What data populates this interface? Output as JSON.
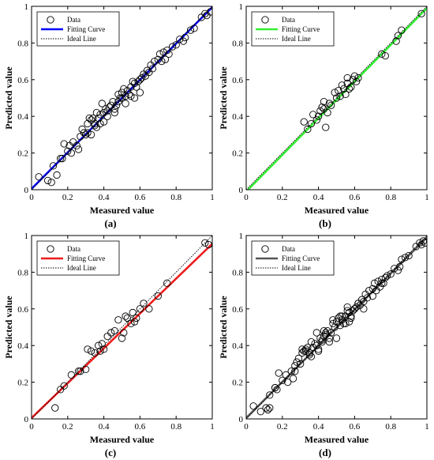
{
  "colors": {
    "panel_a": "#0000ff",
    "panel_b": "#33ee33",
    "panel_c": "#ee1c1c",
    "panel_d": "#555555",
    "ideal": "#000000",
    "marker": "#000000"
  },
  "chart_data": [
    {
      "type": "scatter",
      "caption": "(a)",
      "xlabel": "Measured value",
      "ylabel": "Predicted value",
      "xlim": [
        0,
        1
      ],
      "ylim": [
        0,
        1
      ],
      "xticks": [
        "0",
        "0.2",
        "0.4",
        "0.6",
        "0.8",
        "1"
      ],
      "yticks": [
        "0",
        "0.2",
        "0.4",
        "0.6",
        "0.8",
        "1"
      ],
      "grid": false,
      "legend": {
        "position": "top-left",
        "entries": [
          "Data",
          "Fitting Curve",
          "Ideal Line"
        ]
      },
      "series": [
        {
          "name": "Data",
          "marker": "circle",
          "x": [
            0.04,
            0.09,
            0.11,
            0.12,
            0.14,
            0.16,
            0.17,
            0.18,
            0.2,
            0.21,
            0.22,
            0.23,
            0.25,
            0.26,
            0.27,
            0.28,
            0.29,
            0.3,
            0.31,
            0.31,
            0.32,
            0.33,
            0.33,
            0.34,
            0.35,
            0.35,
            0.36,
            0.36,
            0.37,
            0.38,
            0.38,
            0.39,
            0.4,
            0.4,
            0.41,
            0.42,
            0.42,
            0.43,
            0.44,
            0.45,
            0.46,
            0.46,
            0.47,
            0.48,
            0.48,
            0.49,
            0.5,
            0.5,
            0.51,
            0.52,
            0.52,
            0.53,
            0.54,
            0.55,
            0.55,
            0.56,
            0.57,
            0.57,
            0.58,
            0.59,
            0.6,
            0.6,
            0.61,
            0.62,
            0.63,
            0.64,
            0.65,
            0.66,
            0.67,
            0.68,
            0.7,
            0.71,
            0.72,
            0.73,
            0.74,
            0.75,
            0.76,
            0.78,
            0.8,
            0.82,
            0.84,
            0.85,
            0.88,
            0.9,
            0.94,
            0.96,
            0.97,
            0.99
          ],
          "y": [
            0.07,
            0.05,
            0.04,
            0.13,
            0.08,
            0.17,
            0.17,
            0.25,
            0.21,
            0.24,
            0.2,
            0.26,
            0.24,
            0.22,
            0.29,
            0.33,
            0.31,
            0.3,
            0.31,
            0.36,
            0.39,
            0.38,
            0.3,
            0.39,
            0.36,
            0.35,
            0.34,
            0.42,
            0.39,
            0.41,
            0.36,
            0.47,
            0.37,
            0.42,
            0.44,
            0.43,
            0.4,
            0.45,
            0.46,
            0.48,
            0.42,
            0.44,
            0.46,
            0.52,
            0.48,
            0.5,
            0.53,
            0.5,
            0.55,
            0.51,
            0.47,
            0.54,
            0.52,
            0.56,
            0.51,
            0.59,
            0.58,
            0.5,
            0.56,
            0.59,
            0.6,
            0.53,
            0.61,
            0.63,
            0.62,
            0.65,
            0.64,
            0.68,
            0.66,
            0.7,
            0.71,
            0.74,
            0.7,
            0.75,
            0.71,
            0.76,
            0.74,
            0.78,
            0.79,
            0.82,
            0.81,
            0.83,
            0.87,
            0.88,
            0.94,
            0.96,
            0.95,
            0.97
          ]
        },
        {
          "name": "Fitting Curve",
          "line": true,
          "x": [
            0,
            1
          ],
          "y": [
            0.005,
            0.995
          ]
        },
        {
          "name": "Ideal Line",
          "line": true,
          "dashed": true,
          "x": [
            0,
            1
          ],
          "y": [
            0,
            1
          ]
        }
      ]
    },
    {
      "type": "scatter",
      "caption": "(b)",
      "xlabel": "Measured value",
      "ylabel": "Predicted value",
      "xlim": [
        0,
        1
      ],
      "ylim": [
        0,
        1
      ],
      "xticks": [
        "0",
        "0.2",
        "0.4",
        "0.6",
        "0.8",
        "1"
      ],
      "yticks": [
        "0",
        "0.2",
        "0.4",
        "0.6",
        "0.8",
        "1"
      ],
      "grid": false,
      "legend": {
        "position": "top-left",
        "entries": [
          "Data",
          "Fitting Curve",
          "Ideal Line"
        ]
      },
      "series": [
        {
          "name": "Data",
          "marker": "circle",
          "x": [
            0.32,
            0.34,
            0.36,
            0.37,
            0.39,
            0.4,
            0.41,
            0.42,
            0.43,
            0.43,
            0.44,
            0.45,
            0.46,
            0.47,
            0.49,
            0.5,
            0.51,
            0.52,
            0.53,
            0.54,
            0.55,
            0.56,
            0.56,
            0.57,
            0.58,
            0.59,
            0.6,
            0.61,
            0.62,
            0.75,
            0.77,
            0.83,
            0.84,
            0.86,
            0.97
          ],
          "y": [
            0.37,
            0.33,
            0.36,
            0.41,
            0.38,
            0.4,
            0.43,
            0.45,
            0.48,
            0.44,
            0.34,
            0.42,
            0.47,
            0.46,
            0.53,
            0.5,
            0.54,
            0.51,
            0.57,
            0.55,
            0.52,
            0.61,
            0.58,
            0.55,
            0.56,
            0.6,
            0.62,
            0.59,
            0.61,
            0.74,
            0.73,
            0.81,
            0.84,
            0.87,
            0.96
          ]
        },
        {
          "name": "Fitting Curve",
          "line": true,
          "x": [
            0,
            1
          ],
          "y": [
            -0.01,
            0.99
          ]
        },
        {
          "name": "Ideal Line",
          "line": true,
          "dashed": true,
          "x": [
            0,
            1
          ],
          "y": [
            0,
            1
          ]
        }
      ]
    },
    {
      "type": "scatter",
      "caption": "(c)",
      "xlabel": "Measured value",
      "ylabel": "Predicted value",
      "xlim": [
        0,
        1
      ],
      "ylim": [
        0,
        1
      ],
      "xticks": [
        "0",
        "0.2",
        "0.4",
        "0.6",
        "0.8",
        "1"
      ],
      "yticks": [
        "0",
        "0.2",
        "0.4",
        "0.6",
        "0.8",
        "1"
      ],
      "grid": false,
      "legend": {
        "position": "top-left",
        "entries": [
          "Data",
          "Fitting Curve",
          "Ideal Line"
        ]
      },
      "series": [
        {
          "name": "Data",
          "marker": "circle",
          "x": [
            0.13,
            0.16,
            0.18,
            0.22,
            0.26,
            0.27,
            0.3,
            0.31,
            0.33,
            0.35,
            0.37,
            0.38,
            0.39,
            0.4,
            0.42,
            0.44,
            0.46,
            0.48,
            0.5,
            0.51,
            0.52,
            0.53,
            0.55,
            0.56,
            0.57,
            0.58,
            0.6,
            0.62,
            0.65,
            0.7,
            0.75,
            0.96,
            0.98
          ],
          "y": [
            0.06,
            0.16,
            0.18,
            0.24,
            0.26,
            0.26,
            0.27,
            0.38,
            0.37,
            0.36,
            0.4,
            0.37,
            0.41,
            0.38,
            0.45,
            0.47,
            0.48,
            0.54,
            0.44,
            0.47,
            0.56,
            0.55,
            0.52,
            0.58,
            0.53,
            0.55,
            0.6,
            0.63,
            0.6,
            0.67,
            0.74,
            0.96,
            0.95
          ]
        },
        {
          "name": "Fitting Curve",
          "line": true,
          "x": [
            0,
            1
          ],
          "y": [
            0.005,
            0.955
          ]
        },
        {
          "name": "Ideal Line",
          "line": true,
          "dashed": true,
          "x": [
            0,
            1
          ],
          "y": [
            0,
            1
          ]
        }
      ]
    },
    {
      "type": "scatter",
      "caption": "(d)",
      "xlabel": "Measured value",
      "ylabel": "Predicted value",
      "xlim": [
        0,
        1
      ],
      "ylim": [
        0,
        1
      ],
      "xticks": [
        "0",
        "0.2",
        "0.4",
        "0.6",
        "0.8",
        "1"
      ],
      "yticks": [
        "0",
        "0.2",
        "0.4",
        "0.6",
        "0.8",
        "1"
      ],
      "grid": false,
      "legend": {
        "position": "top-left",
        "entries": [
          "Data",
          "Fitting Curve",
          "Ideal Line"
        ]
      },
      "series": [
        {
          "name": "Data",
          "marker": "circle",
          "x": [
            0.04,
            0.08,
            0.11,
            0.12,
            0.13,
            0.16,
            0.17,
            0.18,
            0.2,
            0.22,
            0.23,
            0.25,
            0.26,
            0.27,
            0.28,
            0.29,
            0.3,
            0.31,
            0.32,
            0.33,
            0.34,
            0.35,
            0.36,
            0.37,
            0.38,
            0.39,
            0.4,
            0.41,
            0.42,
            0.43,
            0.44,
            0.45,
            0.46,
            0.47,
            0.48,
            0.49,
            0.5,
            0.51,
            0.52,
            0.53,
            0.54,
            0.55,
            0.56,
            0.57,
            0.58,
            0.59,
            0.6,
            0.61,
            0.62,
            0.63,
            0.64,
            0.65,
            0.66,
            0.67,
            0.68,
            0.7,
            0.71,
            0.72,
            0.73,
            0.74,
            0.75,
            0.76,
            0.77,
            0.78,
            0.8,
            0.82,
            0.84,
            0.85,
            0.86,
            0.88,
            0.9,
            0.94,
            0.96,
            0.97,
            0.98,
            0.99,
            0.13,
            0.16,
            0.27,
            0.31,
            0.33,
            0.35,
            0.4,
            0.42,
            0.44,
            0.48,
            0.5,
            0.52,
            0.55,
            0.57,
            0.6,
            0.62,
            0.65,
            0.7,
            0.75,
            0.36,
            0.39,
            0.43,
            0.46,
            0.53,
            0.56,
            0.58
          ],
          "y": [
            0.07,
            0.04,
            0.06,
            0.05,
            0.13,
            0.17,
            0.16,
            0.25,
            0.21,
            0.24,
            0.2,
            0.26,
            0.22,
            0.29,
            0.31,
            0.33,
            0.3,
            0.36,
            0.37,
            0.38,
            0.39,
            0.36,
            0.42,
            0.39,
            0.41,
            0.4,
            0.37,
            0.44,
            0.43,
            0.45,
            0.46,
            0.48,
            0.44,
            0.47,
            0.52,
            0.5,
            0.53,
            0.55,
            0.51,
            0.54,
            0.52,
            0.56,
            0.59,
            0.58,
            0.56,
            0.59,
            0.6,
            0.61,
            0.63,
            0.62,
            0.65,
            0.64,
            0.68,
            0.66,
            0.7,
            0.71,
            0.74,
            0.7,
            0.75,
            0.72,
            0.76,
            0.74,
            0.77,
            0.78,
            0.79,
            0.82,
            0.81,
            0.83,
            0.87,
            0.88,
            0.89,
            0.94,
            0.96,
            0.95,
            0.97,
            0.96,
            0.06,
            0.17,
            0.26,
            0.38,
            0.37,
            0.35,
            0.38,
            0.42,
            0.47,
            0.54,
            0.44,
            0.56,
            0.52,
            0.53,
            0.6,
            0.63,
            0.6,
            0.67,
            0.74,
            0.34,
            0.47,
            0.48,
            0.42,
            0.56,
            0.61,
            0.55
          ]
        },
        {
          "name": "Fitting Curve",
          "line": true,
          "x": [
            0,
            1
          ],
          "y": [
            0.005,
            0.99
          ]
        },
        {
          "name": "Ideal Line",
          "line": true,
          "dashed": true,
          "x": [
            0,
            1
          ],
          "y": [
            0,
            1
          ]
        }
      ]
    }
  ]
}
